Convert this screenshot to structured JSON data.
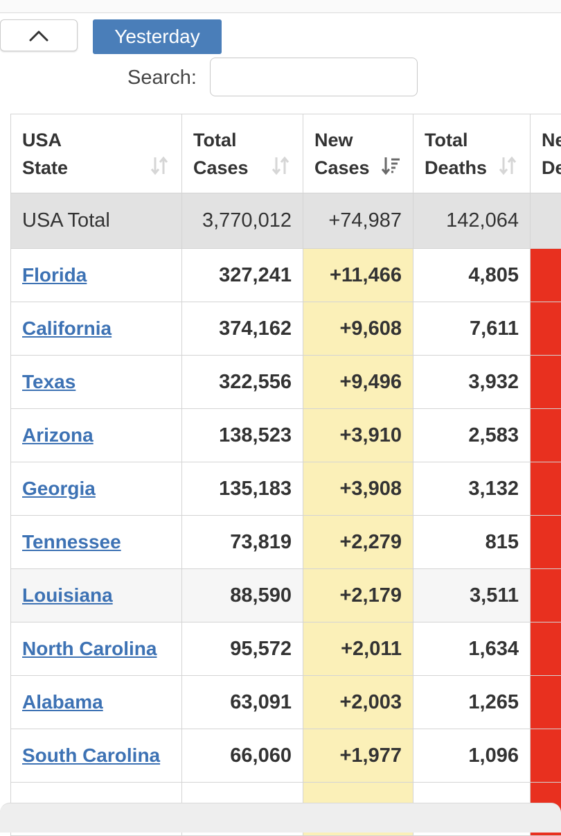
{
  "controls": {
    "collapse_icon": "chevron-up-icon",
    "tab_label": "Yesterday",
    "search_label": "Search:",
    "search_value": "",
    "search_placeholder": ""
  },
  "table": {
    "columns": [
      {
        "line1": "USA",
        "line2": "State"
      },
      {
        "line1": "Total",
        "line2": "Cases"
      },
      {
        "line1": "New",
        "line2": "Cases"
      },
      {
        "line1": "Total",
        "line2": "Deaths"
      },
      {
        "line1": "Ne",
        "line2": "De"
      }
    ],
    "total_row": {
      "name": "USA Total",
      "total_cases": "3,770,012",
      "new_cases": "+74,987",
      "total_deaths": "142,064"
    },
    "rows": [
      {
        "state": "Florida",
        "total_cases": "327,241",
        "new_cases": "+11,466",
        "total_deaths": "4,805"
      },
      {
        "state": "California",
        "total_cases": "374,162",
        "new_cases": "+9,608",
        "total_deaths": "7,611"
      },
      {
        "state": "Texas",
        "total_cases": "322,556",
        "new_cases": "+9,496",
        "total_deaths": "3,932"
      },
      {
        "state": "Arizona",
        "total_cases": "138,523",
        "new_cases": "+3,910",
        "total_deaths": "2,583"
      },
      {
        "state": "Georgia",
        "total_cases": "135,183",
        "new_cases": "+3,908",
        "total_deaths": "3,132"
      },
      {
        "state": "Tennessee",
        "total_cases": "73,819",
        "new_cases": "+2,279",
        "total_deaths": "815"
      },
      {
        "state": "Louisiana",
        "total_cases": "88,590",
        "new_cases": "+2,179",
        "total_deaths": "3,511"
      },
      {
        "state": "North Carolina",
        "total_cases": "95,572",
        "new_cases": "+2,011",
        "total_deaths": "1,634"
      },
      {
        "state": "Alabama",
        "total_cases": "63,091",
        "new_cases": "+2,003",
        "total_deaths": "1,265"
      },
      {
        "state": "South Carolina",
        "total_cases": "66,060",
        "new_cases": "+1,977",
        "total_deaths": "1,096"
      }
    ]
  },
  "colors": {
    "tab_bg": "#4a7eb9",
    "link": "#3d72b4",
    "new_cases_highlight": "#fbf0b8",
    "new_deaths_highlight": "#e8301f",
    "total_row_bg": "#e2e2e2"
  }
}
